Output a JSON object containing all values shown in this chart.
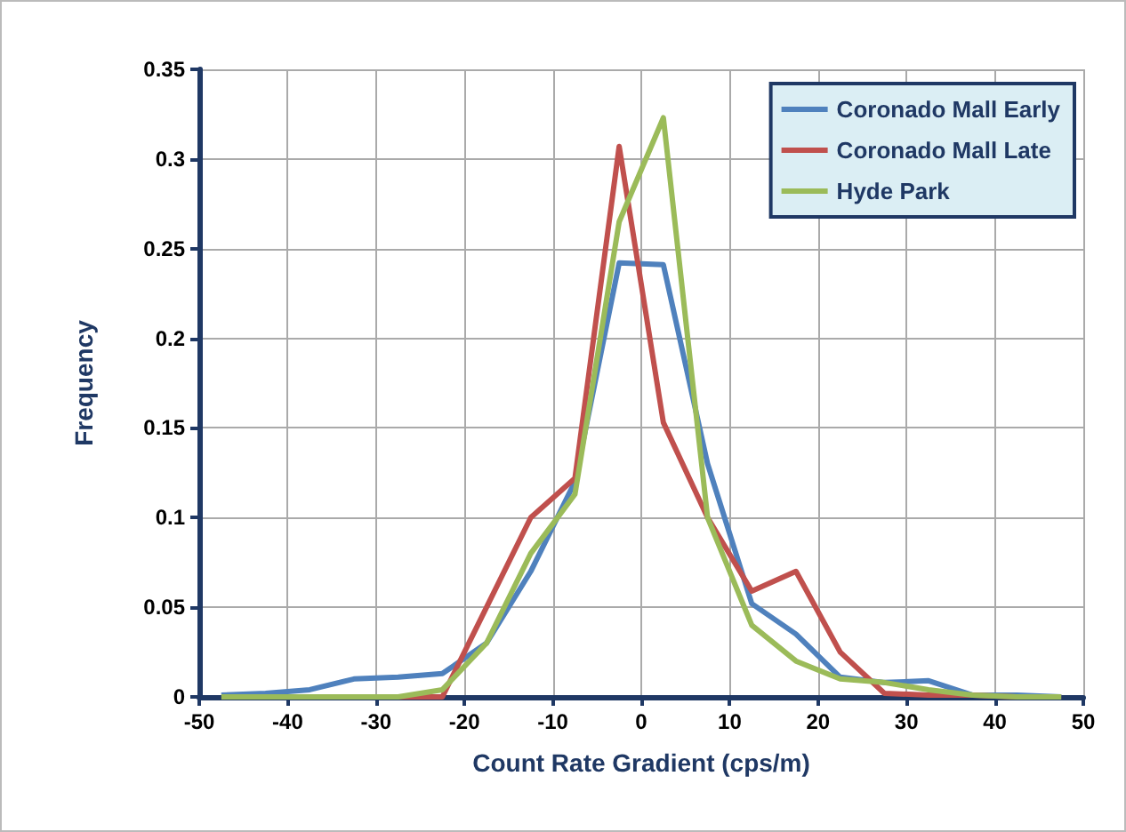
{
  "chart_data": {
    "type": "line",
    "xlabel": "Count Rate Gradient (cps/m)",
    "ylabel": "Frequency",
    "x": [
      -47.5,
      -42.5,
      -37.5,
      -32.5,
      -27.5,
      -22.5,
      -17.5,
      -12.5,
      -7.5,
      -2.5,
      2.5,
      7.5,
      12.5,
      17.5,
      22.5,
      27.5,
      32.5,
      37.5,
      42.5,
      47.5
    ],
    "series": [
      {
        "name": "Coronado Mall Early",
        "color": "#4f81bd",
        "values": [
          0.001,
          0.002,
          0.004,
          0.01,
          0.011,
          0.013,
          0.03,
          0.07,
          0.12,
          0.242,
          0.241,
          0.13,
          0.052,
          0.035,
          0.011,
          0.008,
          0.009,
          0.001,
          0.001,
          0
        ]
      },
      {
        "name": "Coronado Mall Late",
        "color": "#c0504d",
        "values": [
          null,
          null,
          null,
          null,
          0,
          0,
          0.05,
          0.1,
          0.122,
          0.307,
          0.153,
          0.1,
          0.059,
          0.07,
          0.025,
          0.002,
          0.001,
          0.001,
          0,
          0
        ]
      },
      {
        "name": "Hyde Park",
        "color": "#9bbb59",
        "values": [
          0,
          0,
          0,
          0,
          0,
          0.004,
          0.03,
          0.08,
          0.113,
          0.265,
          0.323,
          0.1,
          0.04,
          0.02,
          0.01,
          0.008,
          0.004,
          0.001,
          0,
          0
        ]
      }
    ],
    "xlim": [
      -50,
      50
    ],
    "xticks": [
      -50,
      -40,
      -30,
      -20,
      -10,
      0,
      10,
      20,
      30,
      40,
      50
    ],
    "ylim": [
      0,
      0.35
    ],
    "yticks": [
      0,
      0.05,
      0.1,
      0.15,
      0.2,
      0.25,
      0.3,
      0.35
    ],
    "grid": true,
    "legend": "top right",
    "marker": "none",
    "line_style": "solid"
  }
}
